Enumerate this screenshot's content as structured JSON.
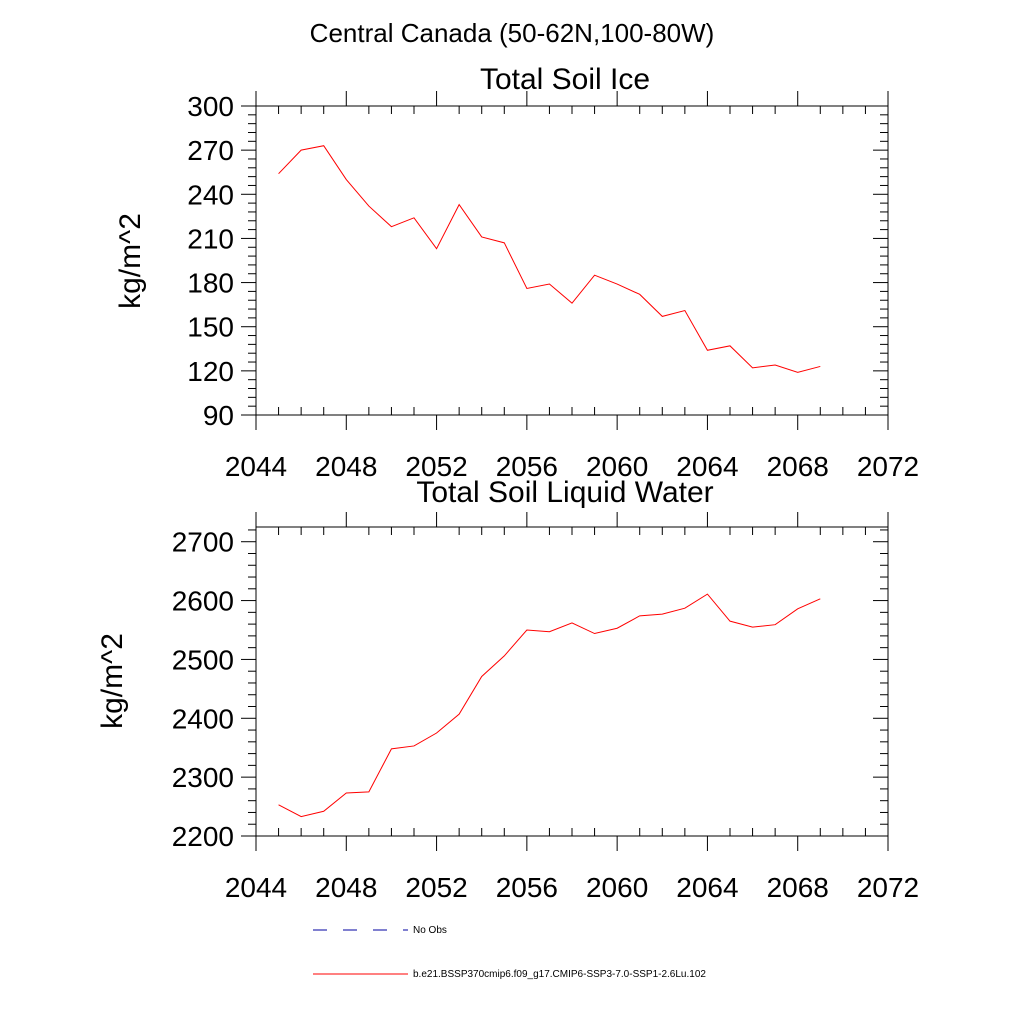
{
  "figure": {
    "suptitle": "Central Canada (50-62N,100-80W)",
    "line_color": "#ff0000",
    "obs_color": "#0000a0"
  },
  "chart_data": [
    {
      "type": "line",
      "title": "Total Soil Ice",
      "xlabel": "",
      "ylabel": "kg/m^2",
      "xlim": [
        2044,
        2072
      ],
      "ylim": [
        90,
        300
      ],
      "xticks": [
        2044,
        2048,
        2052,
        2056,
        2060,
        2064,
        2068,
        2072
      ],
      "yticks": [
        90,
        120,
        150,
        180,
        210,
        240,
        270,
        300
      ],
      "grid": false,
      "series": [
        {
          "name": "b.e21.BSSP370cmip6.f09_g17.CMIP6-SSP3-7.0-SSP1-2.6Lu.102",
          "color": "#ff0000",
          "x": [
            2045,
            2046,
            2047,
            2048,
            2049,
            2050,
            2051,
            2052,
            2053,
            2054,
            2055,
            2056,
            2057,
            2058,
            2059,
            2060,
            2061,
            2062,
            2063,
            2064,
            2065,
            2066,
            2067,
            2068,
            2069
          ],
          "values": [
            254,
            270,
            273,
            250,
            232,
            218,
            224,
            203,
            233,
            211,
            207,
            176,
            179,
            166,
            185,
            179,
            172,
            157,
            161,
            134,
            137,
            122,
            124,
            119,
            123
          ]
        }
      ]
    },
    {
      "type": "line",
      "title": "Total Soil Liquid Water",
      "xlabel": "",
      "ylabel": "kg/m^2",
      "xlim": [
        2044,
        2072
      ],
      "ylim": [
        2200,
        2725
      ],
      "xticks": [
        2044,
        2048,
        2052,
        2056,
        2060,
        2064,
        2068,
        2072
      ],
      "yticks": [
        2200,
        2300,
        2400,
        2500,
        2600,
        2700
      ],
      "grid": false,
      "series": [
        {
          "name": "b.e21.BSSP370cmip6.f09_g17.CMIP6-SSP3-7.0-SSP1-2.6Lu.102",
          "color": "#ff0000",
          "x": [
            2045,
            2046,
            2047,
            2048,
            2049,
            2050,
            2051,
            2052,
            2053,
            2054,
            2055,
            2056,
            2057,
            2058,
            2059,
            2060,
            2061,
            2062,
            2063,
            2064,
            2065,
            2066,
            2067,
            2068,
            2069
          ],
          "values": [
            2253,
            2233,
            2242,
            2273,
            2275,
            2348,
            2353,
            2375,
            2407,
            2471,
            2506,
            2550,
            2547,
            2562,
            2544,
            2553,
            2574,
            2577,
            2587,
            2611,
            2565,
            2555,
            2559,
            2586,
            2603
          ]
        }
      ]
    }
  ],
  "legend": {
    "placement": "bottom",
    "items": [
      {
        "label": "No Obs",
        "style": "dashed",
        "color": "#0000a0"
      },
      {
        "label": "b.e21.BSSP370cmip6.f09_g17.CMIP6-SSP3-7.0-SSP1-2.6Lu.102",
        "style": "solid",
        "color": "#ff0000"
      }
    ]
  }
}
